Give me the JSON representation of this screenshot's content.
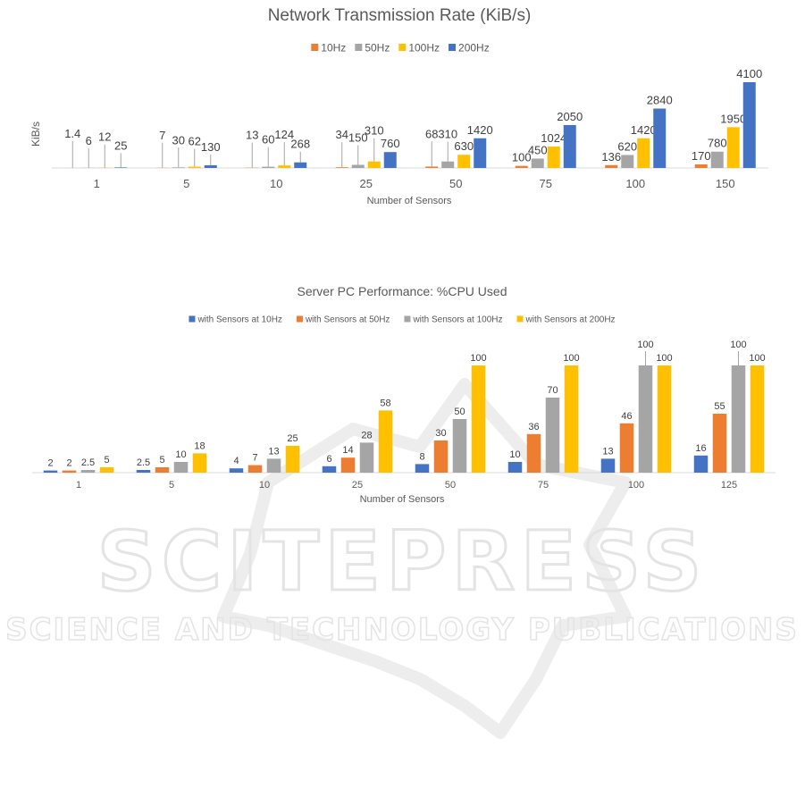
{
  "watermark": {
    "name": "SCITEPRESS",
    "tagline": "SCIENCE AND TECHNOLOGY PUBLICATIONS"
  },
  "chart_data": [
    {
      "type": "bar",
      "title": "Network Transmission Rate (KiB/s)",
      "xlabel": "Number of Sensors",
      "ylabel": "KiB/s",
      "ylim": [
        0,
        4100
      ],
      "grid": false,
      "legend_position": "top",
      "categories": [
        "1",
        "5",
        "10",
        "25",
        "50",
        "75",
        "100",
        "150"
      ],
      "series": [
        {
          "name": "10Hz",
          "color": "#ED7D31",
          "values": [
            1.4,
            7,
            13,
            34,
            68,
            100,
            136,
            170
          ]
        },
        {
          "name": "50Hz",
          "color": "#A5A5A5",
          "values": [
            6,
            30,
            60,
            150,
            310,
            450,
            620,
            780
          ]
        },
        {
          "name": "100Hz",
          "color": "#FFC000",
          "values": [
            12,
            62,
            124,
            310,
            630,
            1024,
            1420,
            1950
          ]
        },
        {
          "name": "200Hz",
          "color": "#4472C4",
          "values": [
            25,
            130,
            268,
            760,
            1420,
            2050,
            2840,
            4100
          ]
        }
      ]
    },
    {
      "type": "bar",
      "title": "Server PC Performance:  %CPU Used",
      "xlabel": "Number of Sensors",
      "ylabel": "",
      "ylim": [
        0,
        100
      ],
      "grid": false,
      "legend_position": "top",
      "categories": [
        "1",
        "5",
        "10",
        "25",
        "50",
        "75",
        "100",
        "125"
      ],
      "series": [
        {
          "name": "with Sensors at 10Hz",
          "color": "#4472C4",
          "values": [
            2,
            2.5,
            4,
            6,
            8,
            10,
            13,
            16
          ]
        },
        {
          "name": "with Sensors at 50Hz",
          "color": "#ED7D31",
          "values": [
            2,
            5,
            7,
            14,
            30,
            36,
            46,
            55
          ]
        },
        {
          "name": "with Sensors at 100Hz",
          "color": "#A5A5A5",
          "values": [
            2.5,
            10,
            13,
            28,
            50,
            70,
            100,
            100
          ]
        },
        {
          "name": "with Sensors at 200Hz",
          "color": "#FFC000",
          "values": [
            5,
            18,
            25,
            58,
            100,
            100,
            100,
            100
          ]
        }
      ]
    }
  ]
}
